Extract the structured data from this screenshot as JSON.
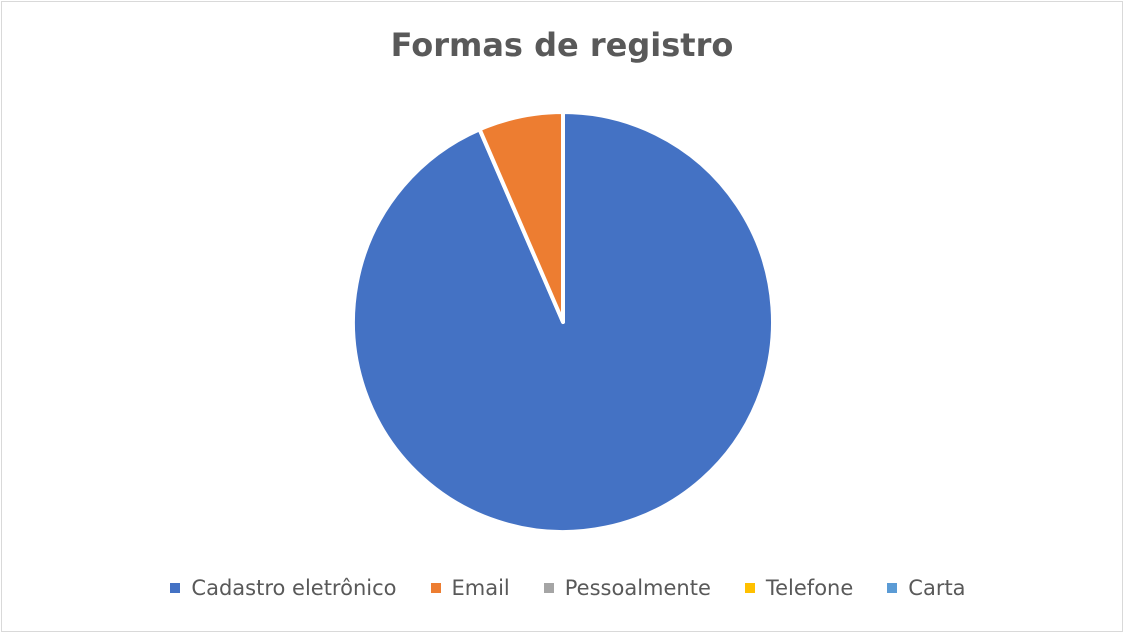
{
  "chart_data": {
    "type": "pie",
    "title": "Formas de registro",
    "categories": [
      "Cadastro eletrônico",
      "Email",
      "Pessoalmente",
      "Telefone",
      "Carta"
    ],
    "values": [
      93.5,
      6.5,
      0,
      0,
      0
    ],
    "colors": [
      "#4472c4",
      "#ed7d31",
      "#a5a5a5",
      "#ffc000",
      "#5b9bd5"
    ],
    "legend": "bottom"
  }
}
